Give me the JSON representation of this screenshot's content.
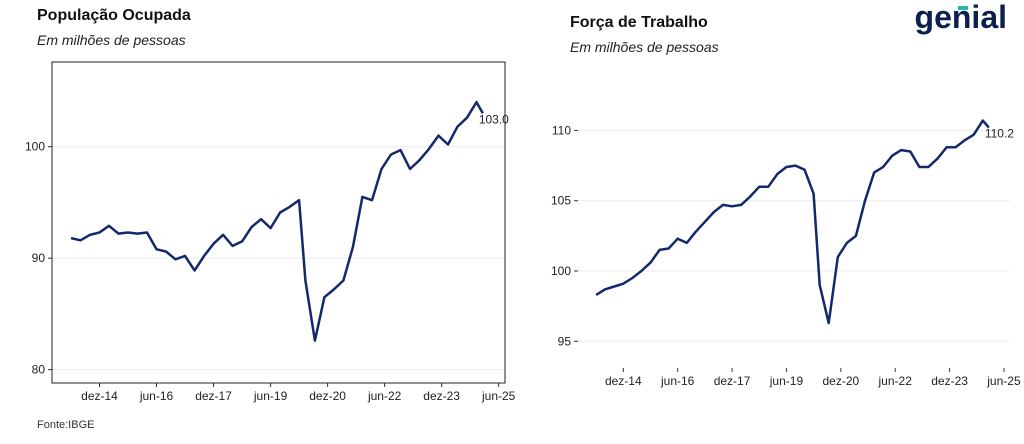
{
  "chart_data": [
    {
      "type": "line",
      "title": "População Ocupada",
      "subtitle": "Em milhões de pessoas",
      "color": "#13296b",
      "grid": true,
      "box": true,
      "x": [
        "2014-03",
        "2014-06",
        "2014-09",
        "2014-12",
        "2015-03",
        "2015-06",
        "2015-09",
        "2015-12",
        "2016-03",
        "2016-06",
        "2016-09",
        "2016-12",
        "2017-03",
        "2017-06",
        "2017-09",
        "2017-12",
        "2018-03",
        "2018-06",
        "2018-09",
        "2018-12",
        "2019-03",
        "2019-06",
        "2019-09",
        "2019-12",
        "2020-03",
        "2020-05",
        "2020-08",
        "2020-11",
        "2021-02",
        "2021-05",
        "2021-08",
        "2021-11",
        "2022-02",
        "2022-05",
        "2022-08",
        "2022-11",
        "2023-02",
        "2023-05",
        "2023-08",
        "2023-11",
        "2024-02",
        "2024-05",
        "2024-08",
        "2024-11",
        "2025-01"
      ],
      "values": [
        91.8,
        91.6,
        92.1,
        92.3,
        92.9,
        92.2,
        92.3,
        92.2,
        92.3,
        90.8,
        90.6,
        89.9,
        90.2,
        88.9,
        90.2,
        91.3,
        92.1,
        91.1,
        91.5,
        92.8,
        93.5,
        92.7,
        94.1,
        94.6,
        95.2,
        88.0,
        82.6,
        86.5,
        87.2,
        88.0,
        91.0,
        95.5,
        95.2,
        98.0,
        99.3,
        99.7,
        98.0,
        98.8,
        99.8,
        101.0,
        100.2,
        101.8,
        102.6,
        104.0,
        103.0
      ],
      "end_label": "103.0",
      "xlim": [
        "2013-09",
        "2025-08"
      ],
      "xticks": [
        {
          "value": "2014-12",
          "label": "dez-14"
        },
        {
          "value": "2016-06",
          "label": "jun-16"
        },
        {
          "value": "2017-12",
          "label": "dez-17"
        },
        {
          "value": "2019-06",
          "label": "jun-19"
        },
        {
          "value": "2020-12",
          "label": "dez-20"
        },
        {
          "value": "2022-06",
          "label": "jun-22"
        },
        {
          "value": "2023-12",
          "label": "dez-23"
        },
        {
          "value": "2025-06",
          "label": "jun-25"
        }
      ],
      "ylim": [
        78.8,
        107.6
      ],
      "yticks": [
        80,
        90,
        100
      ]
    },
    {
      "type": "line",
      "title": "Força de Trabalho",
      "subtitle": "Em milhões de pessoas",
      "color": "#13296b",
      "grid": true,
      "box": false,
      "x": [
        "2014-03",
        "2014-06",
        "2014-09",
        "2014-12",
        "2015-03",
        "2015-06",
        "2015-09",
        "2015-12",
        "2016-03",
        "2016-06",
        "2016-09",
        "2016-12",
        "2017-03",
        "2017-06",
        "2017-09",
        "2017-12",
        "2018-03",
        "2018-06",
        "2018-09",
        "2018-12",
        "2019-03",
        "2019-06",
        "2019-09",
        "2019-12",
        "2020-03",
        "2020-05",
        "2020-08",
        "2020-11",
        "2021-02",
        "2021-05",
        "2021-08",
        "2021-11",
        "2022-02",
        "2022-05",
        "2022-08",
        "2022-11",
        "2023-02",
        "2023-05",
        "2023-08",
        "2023-11",
        "2024-02",
        "2024-05",
        "2024-08",
        "2024-11",
        "2025-01"
      ],
      "values": [
        98.3,
        98.7,
        98.9,
        99.1,
        99.5,
        100.0,
        100.6,
        101.5,
        101.6,
        102.3,
        102.0,
        102.8,
        103.5,
        104.2,
        104.7,
        104.6,
        104.7,
        105.3,
        106.0,
        106.0,
        106.9,
        107.4,
        107.5,
        107.2,
        105.5,
        99.0,
        96.3,
        101.0,
        102.0,
        102.5,
        105.0,
        107.0,
        107.4,
        108.2,
        108.6,
        108.5,
        107.4,
        107.4,
        108.0,
        108.8,
        108.8,
        109.3,
        109.7,
        110.7,
        110.2
      ],
      "end_label": "110.2",
      "xlim": [
        "2013-09",
        "2025-08"
      ],
      "xticks": [
        {
          "value": "2014-12",
          "label": "dez-14"
        },
        {
          "value": "2016-06",
          "label": "jun-16"
        },
        {
          "value": "2017-12",
          "label": "dez-17"
        },
        {
          "value": "2019-06",
          "label": "jun-19"
        },
        {
          "value": "2020-12",
          "label": "dez-20"
        },
        {
          "value": "2022-06",
          "label": "jun-22"
        },
        {
          "value": "2023-12",
          "label": "dez-23"
        },
        {
          "value": "2025-06",
          "label": "jun-25"
        }
      ],
      "ylim": [
        93.1,
        114.3
      ],
      "yticks": [
        95,
        100,
        105,
        110
      ]
    }
  ],
  "brand": "genial",
  "source": "Fonte:IBGE"
}
